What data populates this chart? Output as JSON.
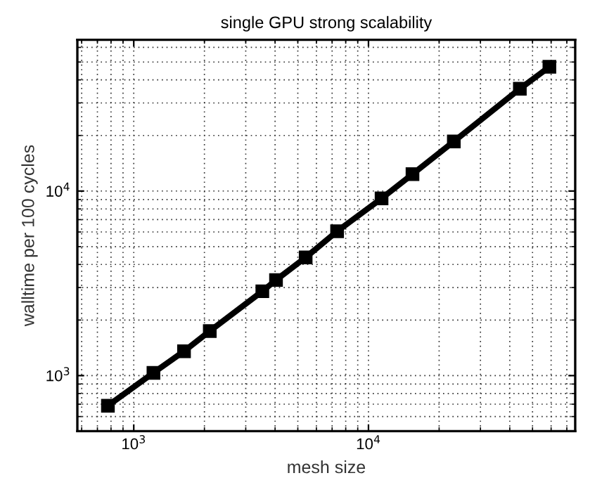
{
  "chart_data": {
    "type": "line",
    "title": "single GPU strong scalability",
    "xlabel": "mesh size",
    "ylabel": "walltime per 100 cycles",
    "log": "xy",
    "grid": true,
    "marker": "square",
    "line_style": "solid",
    "xlim": [
      575,
      76000
    ],
    "ylim": [
      500,
      66000
    ],
    "xticks": [
      {
        "value": 1000,
        "label": "10$^{3}$"
      },
      {
        "value": 10000,
        "label": "10$^{4}$"
      }
    ],
    "yticks": [
      {
        "value": 1000,
        "label": "10$^{3}$"
      },
      {
        "value": 10000,
        "label": "10$^{4}$"
      }
    ],
    "series": [
      {
        "color": "#000000",
        "x": [
          776,
          1213,
          1637,
          2108,
          3530,
          4037,
          5400,
          7350,
          11370,
          15400,
          23100,
          44150,
          59000
        ],
        "values": [
          687,
          1035,
          1355,
          1742,
          2864,
          3296,
          4366,
          6050,
          9120,
          12340,
          18570,
          35800,
          47100
        ]
      }
    ]
  }
}
